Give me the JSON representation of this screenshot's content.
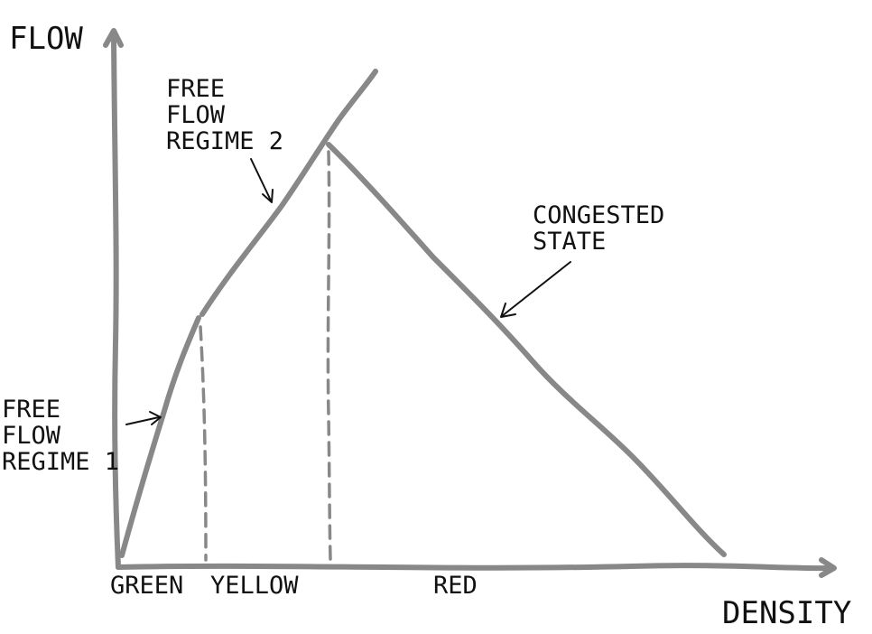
{
  "axes": {
    "y_label": "FLOW",
    "x_label": "DENSITY"
  },
  "zones": {
    "green": "GREEN",
    "yellow": "YELLOW",
    "red": "RED"
  },
  "annotations": {
    "free_flow_1": [
      "FREE",
      "FLOW",
      "REGIME 1"
    ],
    "free_flow_2": [
      "FREE",
      "FLOW",
      "REGIME 2"
    ],
    "congested": [
      "CONGESTED",
      "STATE"
    ]
  },
  "colors": {
    "curve": "#888888",
    "text": "#111111",
    "background": "#ffffff"
  }
}
